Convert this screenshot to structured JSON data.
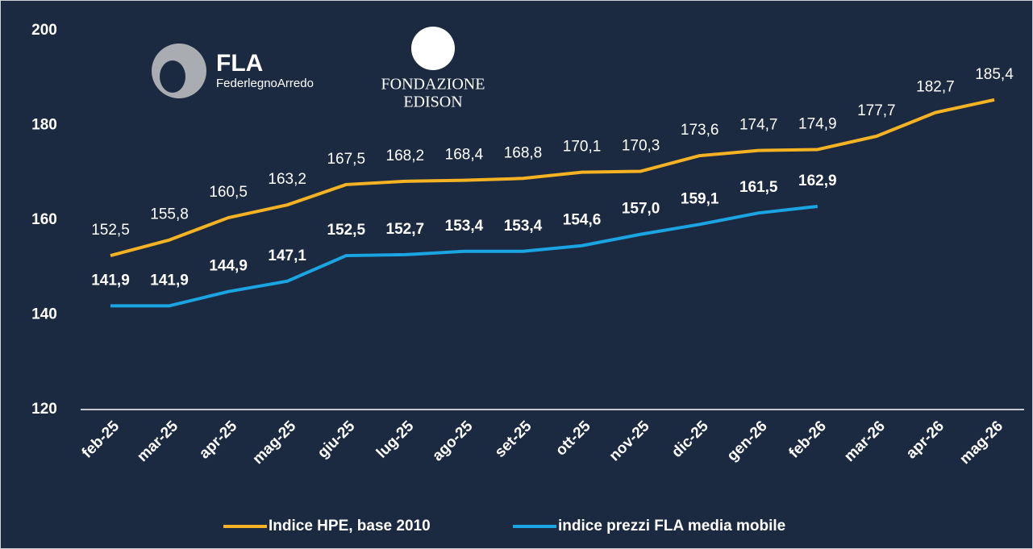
{
  "logos": {
    "fla": "FLA",
    "fla_sub": "FederlegnoArredo",
    "edison_1": "FONDAZIONE",
    "edison_2": "EDISON"
  },
  "chart_data": {
    "type": "line",
    "categories": [
      "feb-25",
      "mar-25",
      "apr-25",
      "mag-25",
      "giu-25",
      "lug-25",
      "ago-25",
      "set-25",
      "ott-25",
      "nov-25",
      "dic-25",
      "gen-26",
      "feb-26",
      "mar-26",
      "apr-26",
      "mag-26"
    ],
    "series": [
      {
        "name": "Indice HPE, base 2010",
        "color": "#f5b323",
        "values": [
          152.5,
          155.8,
          160.5,
          163.2,
          167.5,
          168.2,
          168.4,
          168.8,
          170.1,
          170.3,
          173.6,
          174.7,
          174.9,
          177.7,
          182.7,
          185.4
        ],
        "value_labels": [
          "152,5",
          "155,8",
          "160,5",
          "163,2",
          "167,5",
          "168,2",
          "168,4",
          "168,8",
          "170,1",
          "170,3",
          "173,6",
          "174,7",
          "174,9",
          "177,7",
          "182,7",
          "185,4"
        ]
      },
      {
        "name": "indice prezzi FLA media mobile",
        "color": "#1ba4e2",
        "values": [
          141.9,
          141.9,
          144.9,
          147.1,
          152.5,
          152.7,
          153.4,
          153.4,
          154.6,
          157.0,
          159.1,
          161.5,
          162.9,
          null,
          null,
          null
        ],
        "value_labels": [
          "141,9",
          "141,9",
          "144,9",
          "147,1",
          "152,5",
          "152,7",
          "153,4",
          "153,4",
          "154,6",
          "157,0",
          "159,1",
          "161,5",
          "162,9",
          null,
          null,
          null
        ]
      }
    ],
    "ylim": [
      120,
      200
    ],
    "yticks": [
      120,
      140,
      160,
      180,
      200
    ],
    "grid": false,
    "legend": "bottom"
  }
}
